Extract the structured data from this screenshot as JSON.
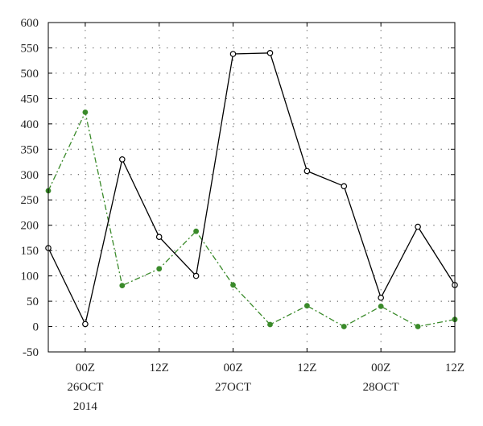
{
  "chart_data": {
    "type": "line",
    "title": "",
    "xlabel": "",
    "ylabel": "",
    "ylim": [
      -50,
      600
    ],
    "yticks": [
      -50,
      0,
      50,
      100,
      150,
      200,
      250,
      300,
      350,
      400,
      450,
      500,
      550,
      600
    ],
    "xlim": [
      "2014-10-25T18:00Z",
      "2014-10-28T12:00Z"
    ],
    "xticks": [
      {
        "time": "2014-10-26T00:00Z",
        "label": "00Z",
        "date": "26OCT",
        "year": "2014"
      },
      {
        "time": "2014-10-26T12:00Z",
        "label": "12Z",
        "date": "",
        "year": ""
      },
      {
        "time": "2014-10-27T00:00Z",
        "label": "00Z",
        "date": "27OCT",
        "year": ""
      },
      {
        "time": "2014-10-27T12:00Z",
        "label": "12Z",
        "date": "",
        "year": ""
      },
      {
        "time": "2014-10-28T00:00Z",
        "label": "00Z",
        "date": "28OCT",
        "year": ""
      },
      {
        "time": "2014-10-28T12:00Z",
        "label": "12Z",
        "date": "",
        "year": ""
      }
    ],
    "grid": true,
    "x": [
      "2014-10-25T18:00Z",
      "2014-10-26T00:00Z",
      "2014-10-26T06:00Z",
      "2014-10-26T12:00Z",
      "2014-10-26T18:00Z",
      "2014-10-27T00:00Z",
      "2014-10-27T06:00Z",
      "2014-10-27T12:00Z",
      "2014-10-27T18:00Z",
      "2014-10-28T00:00Z",
      "2014-10-28T06:00Z",
      "2014-10-28T12:00Z"
    ],
    "series": [
      {
        "color": "#000000",
        "style": "solid",
        "marker": "open-circle",
        "values": [
          155,
          5,
          330,
          177,
          100,
          538,
          540,
          307,
          277,
          57,
          197,
          82
        ]
      },
      {
        "color": "#3a8a2a",
        "style": "dash-dot",
        "marker": "filled-circle",
        "values": [
          268,
          423,
          81,
          114,
          188,
          82,
          4,
          41,
          0,
          40,
          0,
          14
        ]
      }
    ]
  }
}
